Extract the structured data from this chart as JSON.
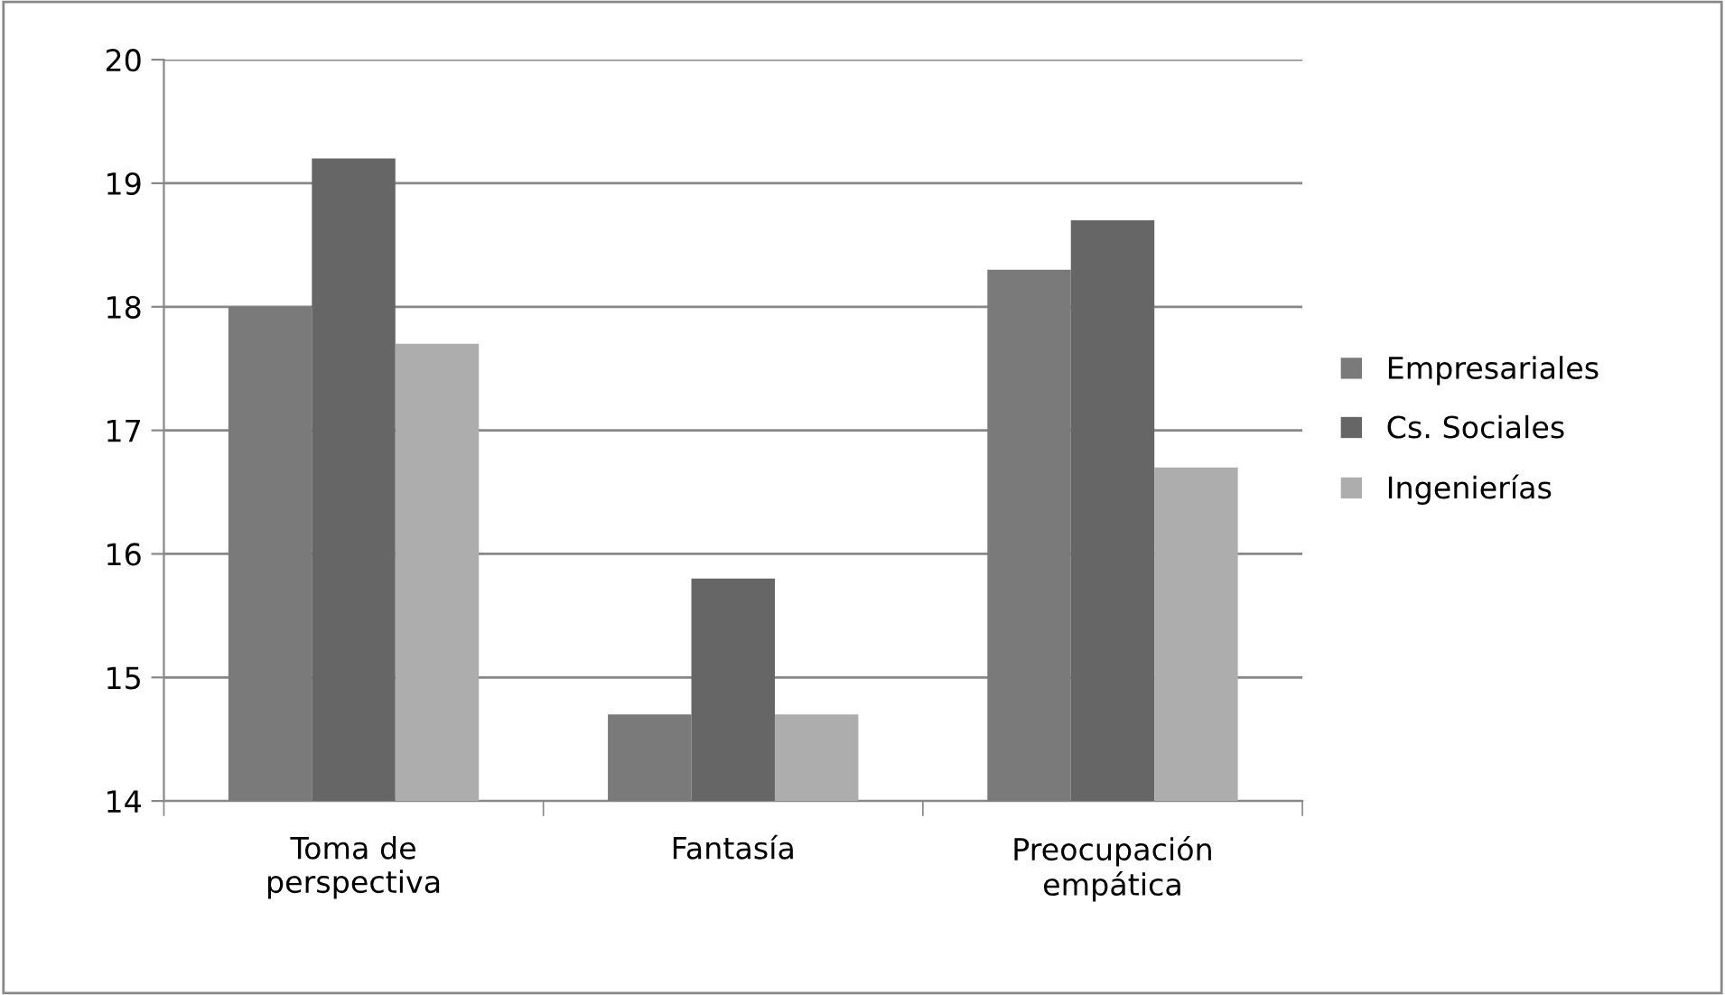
{
  "chart_data": {
    "type": "bar",
    "categories": [
      "Toma de\nperspectiva",
      "Fantasía",
      "Preocupación\nempática"
    ],
    "series": [
      {
        "name": "Empresariales",
        "color": "#7a7a7a",
        "values": [
          18.0,
          14.7,
          18.3
        ]
      },
      {
        "name": "Cs. Sociales",
        "color": "#666666",
        "values": [
          19.2,
          15.8,
          18.7
        ]
      },
      {
        "name": "Ingenierías",
        "color": "#adadad",
        "values": [
          17.7,
          14.7,
          16.7
        ]
      }
    ],
    "ylim": [
      14,
      20
    ],
    "yticks": [
      14,
      15,
      16,
      17,
      18,
      19,
      20
    ],
    "grid": "y",
    "legend": "right"
  }
}
